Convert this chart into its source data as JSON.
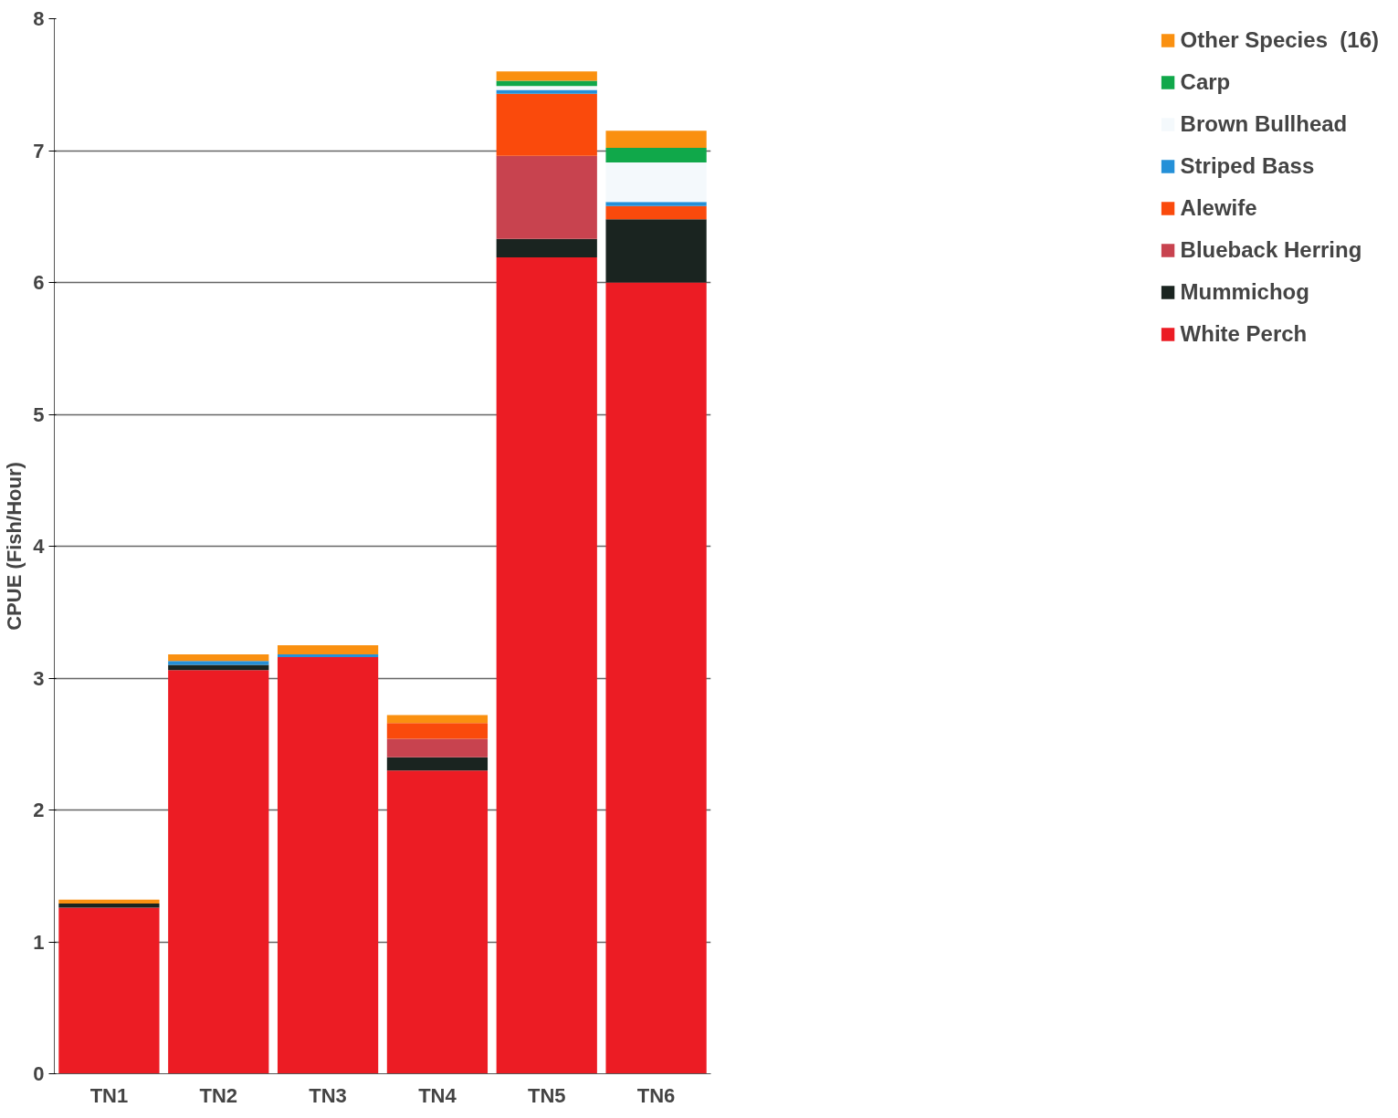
{
  "chart_data": {
    "type": "bar",
    "stacked": true,
    "ylabel": "CPUE (Fish/Hour)",
    "categories": [
      "TN1",
      "TN2",
      "TN3",
      "TN4",
      "TN5",
      "TN6"
    ],
    "series": [
      {
        "name": "White Perch",
        "color": "#ec1c24",
        "values": [
          1.26,
          3.06,
          3.16,
          2.3,
          6.19,
          6.0
        ]
      },
      {
        "name": "Mummichog",
        "color": "#1a2420",
        "values": [
          0.03,
          0.04,
          null,
          0.1,
          0.14,
          0.48
        ]
      },
      {
        "name": "Blueback Herring",
        "color": "#c8434f",
        "values": [
          null,
          null,
          null,
          0.14,
          0.63,
          null
        ]
      },
      {
        "name": "Alewife",
        "color": "#fa4a0c",
        "values": [
          null,
          null,
          null,
          0.12,
          0.47,
          0.1
        ]
      },
      {
        "name": "Striped Bass",
        "color": "#2490d8",
        "values": [
          null,
          0.03,
          0.02,
          null,
          0.03,
          0.03
        ]
      },
      {
        "name": "Brown Bullhead",
        "color": "#f4f9fc",
        "values": [
          null,
          null,
          null,
          null,
          0.03,
          0.3
        ]
      },
      {
        "name": "Carp",
        "color": "#10a84a",
        "values": [
          null,
          null,
          null,
          null,
          0.04,
          0.11
        ]
      },
      {
        "name": "Other Species  (16)",
        "color": "#fa9010",
        "values": [
          0.03,
          0.05,
          0.07,
          0.06,
          0.07,
          0.13
        ]
      }
    ],
    "ylim": [
      0,
      8
    ],
    "yticks": [
      0,
      1,
      2,
      3,
      4,
      5,
      6,
      7,
      8
    ],
    "grid": "y",
    "legend": "right"
  }
}
